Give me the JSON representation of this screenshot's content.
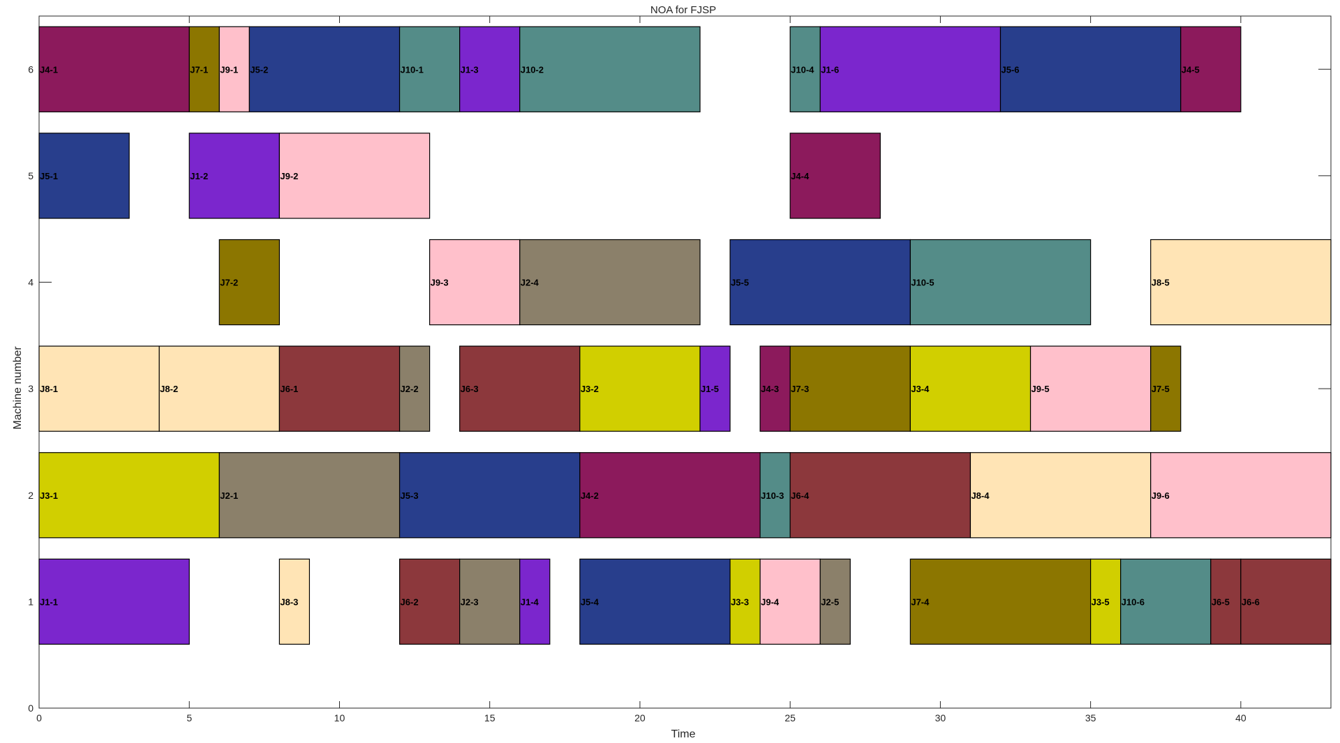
{
  "chart_data": {
    "type": "gantt",
    "title": "NOA for FJSP",
    "xlabel": "Time",
    "ylabel": "Machine number",
    "xlim": [
      0,
      43
    ],
    "ylim": [
      0,
      6.5
    ],
    "xticks": [
      0,
      5,
      10,
      15,
      20,
      25,
      30,
      35,
      40
    ],
    "yticks": [
      0,
      1,
      2,
      3,
      4,
      5,
      6
    ],
    "job_colors": {
      "J1": "#7b26cd",
      "J2": "#8b806a",
      "J3": "#d1cf00",
      "J4": "#8c1a5c",
      "J5": "#283e8c",
      "J6": "#8c383c",
      "J7": "#8c7600",
      "J8": "#ffe4b5",
      "J9": "#ffc0cb",
      "J10": "#548c88"
    },
    "operations": [
      {
        "label": "J4-1",
        "job": "J4",
        "machine": 6,
        "start": 0,
        "end": 5
      },
      {
        "label": "J7-1",
        "job": "J7",
        "machine": 6,
        "start": 5,
        "end": 6
      },
      {
        "label": "J9-1",
        "job": "J9",
        "machine": 6,
        "start": 6,
        "end": 7
      },
      {
        "label": "J5-2",
        "job": "J5",
        "machine": 6,
        "start": 7,
        "end": 12
      },
      {
        "label": "J10-1",
        "job": "J10",
        "machine": 6,
        "start": 12,
        "end": 14
      },
      {
        "label": "J1-3",
        "job": "J1",
        "machine": 6,
        "start": 14,
        "end": 16
      },
      {
        "label": "J10-2",
        "job": "J10",
        "machine": 6,
        "start": 16,
        "end": 22
      },
      {
        "label": "J10-4",
        "job": "J10",
        "machine": 6,
        "start": 25,
        "end": 26
      },
      {
        "label": "J1-6",
        "job": "J1",
        "machine": 6,
        "start": 26,
        "end": 32
      },
      {
        "label": "J5-6",
        "job": "J5",
        "machine": 6,
        "start": 32,
        "end": 38
      },
      {
        "label": "J4-5",
        "job": "J4",
        "machine": 6,
        "start": 38,
        "end": 40
      },
      {
        "label": "J5-1",
        "job": "J5",
        "machine": 5,
        "start": 0,
        "end": 3
      },
      {
        "label": "J1-2",
        "job": "J1",
        "machine": 5,
        "start": 5,
        "end": 8
      },
      {
        "label": "J9-2",
        "job": "J9",
        "machine": 5,
        "start": 8,
        "end": 13
      },
      {
        "label": "J4-4",
        "job": "J4",
        "machine": 5,
        "start": 25,
        "end": 28
      },
      {
        "label": "J7-2",
        "job": "J7",
        "machine": 4,
        "start": 6,
        "end": 8
      },
      {
        "label": "J9-3",
        "job": "J9",
        "machine": 4,
        "start": 13,
        "end": 16
      },
      {
        "label": "J2-4",
        "job": "J2",
        "machine": 4,
        "start": 16,
        "end": 22
      },
      {
        "label": "J5-5",
        "job": "J5",
        "machine": 4,
        "start": 23,
        "end": 29
      },
      {
        "label": "J10-5",
        "job": "J10",
        "machine": 4,
        "start": 29,
        "end": 35
      },
      {
        "label": "J8-5",
        "job": "J8",
        "machine": 4,
        "start": 37,
        "end": 43
      },
      {
        "label": "J8-1",
        "job": "J8",
        "machine": 3,
        "start": 0,
        "end": 4
      },
      {
        "label": "J8-2",
        "job": "J8",
        "machine": 3,
        "start": 4,
        "end": 8
      },
      {
        "label": "J6-1",
        "job": "J6",
        "machine": 3,
        "start": 8,
        "end": 12
      },
      {
        "label": "J2-2",
        "job": "J2",
        "machine": 3,
        "start": 12,
        "end": 13
      },
      {
        "label": "J6-3",
        "job": "J6",
        "machine": 3,
        "start": 14,
        "end": 18
      },
      {
        "label": "J3-2",
        "job": "J3",
        "machine": 3,
        "start": 18,
        "end": 22
      },
      {
        "label": "J1-5",
        "job": "J1",
        "machine": 3,
        "start": 22,
        "end": 23
      },
      {
        "label": "J4-3",
        "job": "J4",
        "machine": 3,
        "start": 24,
        "end": 25
      },
      {
        "label": "J7-3",
        "job": "J7",
        "machine": 3,
        "start": 25,
        "end": 29
      },
      {
        "label": "J3-4",
        "job": "J3",
        "machine": 3,
        "start": 29,
        "end": 33
      },
      {
        "label": "J9-5",
        "job": "J9",
        "machine": 3,
        "start": 33,
        "end": 37
      },
      {
        "label": "J7-5",
        "job": "J7",
        "machine": 3,
        "start": 37,
        "end": 38
      },
      {
        "label": "J3-1",
        "job": "J3",
        "machine": 2,
        "start": 0,
        "end": 6
      },
      {
        "label": "J2-1",
        "job": "J2",
        "machine": 2,
        "start": 6,
        "end": 12
      },
      {
        "label": "J5-3",
        "job": "J5",
        "machine": 2,
        "start": 12,
        "end": 18
      },
      {
        "label": "J4-2",
        "job": "J4",
        "machine": 2,
        "start": 18,
        "end": 24
      },
      {
        "label": "J10-3",
        "job": "J10",
        "machine": 2,
        "start": 24,
        "end": 25
      },
      {
        "label": "J6-4",
        "job": "J6",
        "machine": 2,
        "start": 25,
        "end": 31
      },
      {
        "label": "J8-4",
        "job": "J8",
        "machine": 2,
        "start": 31,
        "end": 37
      },
      {
        "label": "J9-6",
        "job": "J9",
        "machine": 2,
        "start": 37,
        "end": 43
      },
      {
        "label": "J1-1",
        "job": "J1",
        "machine": 1,
        "start": 0,
        "end": 5
      },
      {
        "label": "J8-3",
        "job": "J8",
        "machine": 1,
        "start": 8,
        "end": 9
      },
      {
        "label": "J6-2",
        "job": "J6",
        "machine": 1,
        "start": 12,
        "end": 14
      },
      {
        "label": "J2-3",
        "job": "J2",
        "machine": 1,
        "start": 14,
        "end": 16
      },
      {
        "label": "J1-4",
        "job": "J1",
        "machine": 1,
        "start": 16,
        "end": 17
      },
      {
        "label": "J5-4",
        "job": "J5",
        "machine": 1,
        "start": 18,
        "end": 23
      },
      {
        "label": "J3-3",
        "job": "J3",
        "machine": 1,
        "start": 23,
        "end": 24
      },
      {
        "label": "J9-4",
        "job": "J9",
        "machine": 1,
        "start": 24,
        "end": 26
      },
      {
        "label": "J2-5",
        "job": "J2",
        "machine": 1,
        "start": 26,
        "end": 27
      },
      {
        "label": "J7-4",
        "job": "J7",
        "machine": 1,
        "start": 29,
        "end": 35
      },
      {
        "label": "J3-5",
        "job": "J3",
        "machine": 1,
        "start": 35,
        "end": 36
      },
      {
        "label": "J10-6",
        "job": "J10",
        "machine": 1,
        "start": 36,
        "end": 39
      },
      {
        "label": "J6-5",
        "job": "J6",
        "machine": 1,
        "start": 39,
        "end": 40
      },
      {
        "label": "J6-6",
        "job": "J6",
        "machine": 1,
        "start": 40,
        "end": 43
      }
    ]
  }
}
